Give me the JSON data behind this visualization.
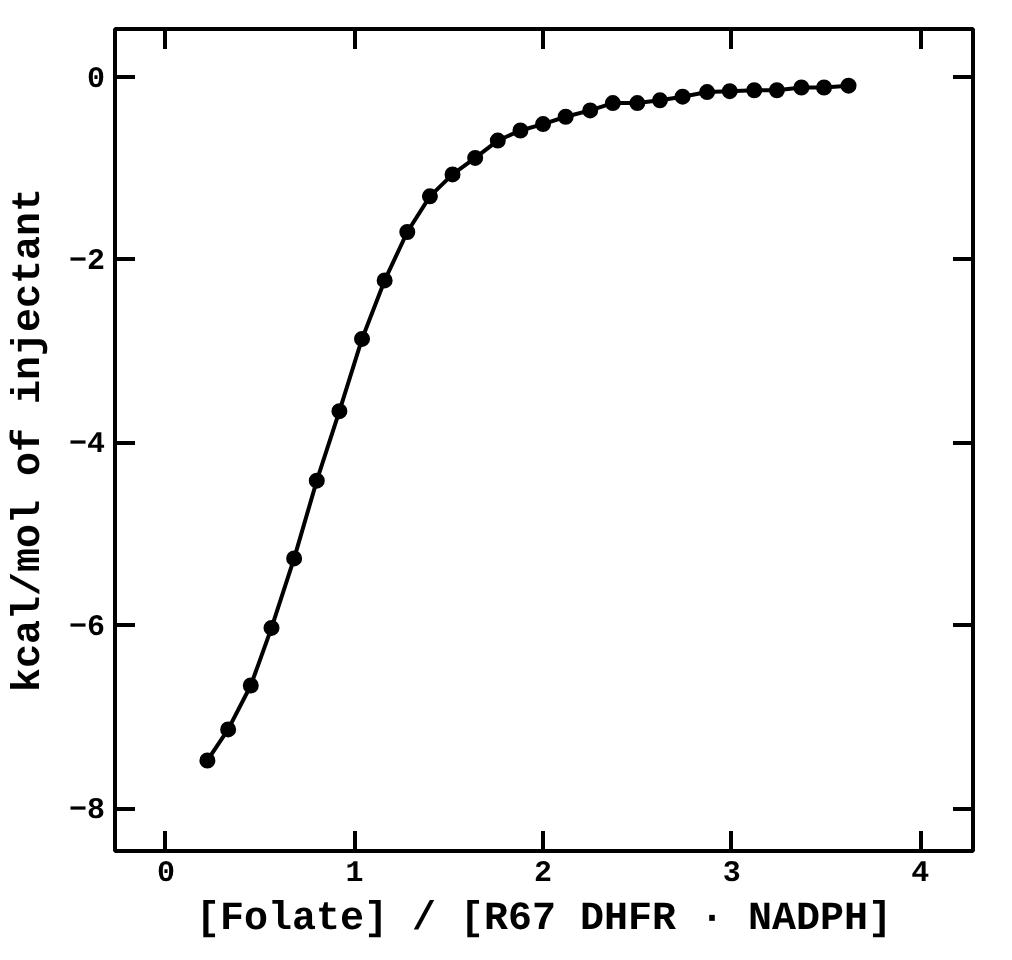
{
  "chart_data": {
    "type": "line",
    "xlabel": "[Folate] / [R67 DHFR · NADPH]",
    "ylabel": "kcal/mol of injectant",
    "x": [
      0.22,
      0.33,
      0.45,
      0.56,
      0.68,
      0.8,
      0.92,
      1.04,
      1.16,
      1.28,
      1.4,
      1.52,
      1.64,
      1.76,
      1.88,
      2.0,
      2.12,
      2.25,
      2.37,
      2.5,
      2.62,
      2.74,
      2.87,
      2.99,
      3.12,
      3.24,
      3.37,
      3.49,
      3.62
    ],
    "series": [
      {
        "color": "#000000",
        "values": [
          -7.48,
          -7.14,
          -6.66,
          -6.03,
          -5.27,
          -4.42,
          -3.66,
          -2.87,
          -2.23,
          -1.7,
          -1.31,
          -1.07,
          -0.89,
          -0.7,
          -0.59,
          -0.52,
          -0.44,
          -0.37,
          -0.29,
          -0.29,
          -0.26,
          -0.22,
          -0.17,
          -0.16,
          -0.15,
          -0.15,
          -0.12,
          -0.12,
          -0.1
        ]
      }
    ],
    "xlim": [
      -0.27,
      4.28
    ],
    "ylim": [
      -8.47,
      0.52
    ],
    "xticks": [
      0,
      1,
      2,
      3,
      4
    ],
    "yticks": [
      0,
      -2,
      -4,
      -6,
      -8
    ],
    "marker": "circle",
    "line_style": "solid",
    "grid": false
  }
}
